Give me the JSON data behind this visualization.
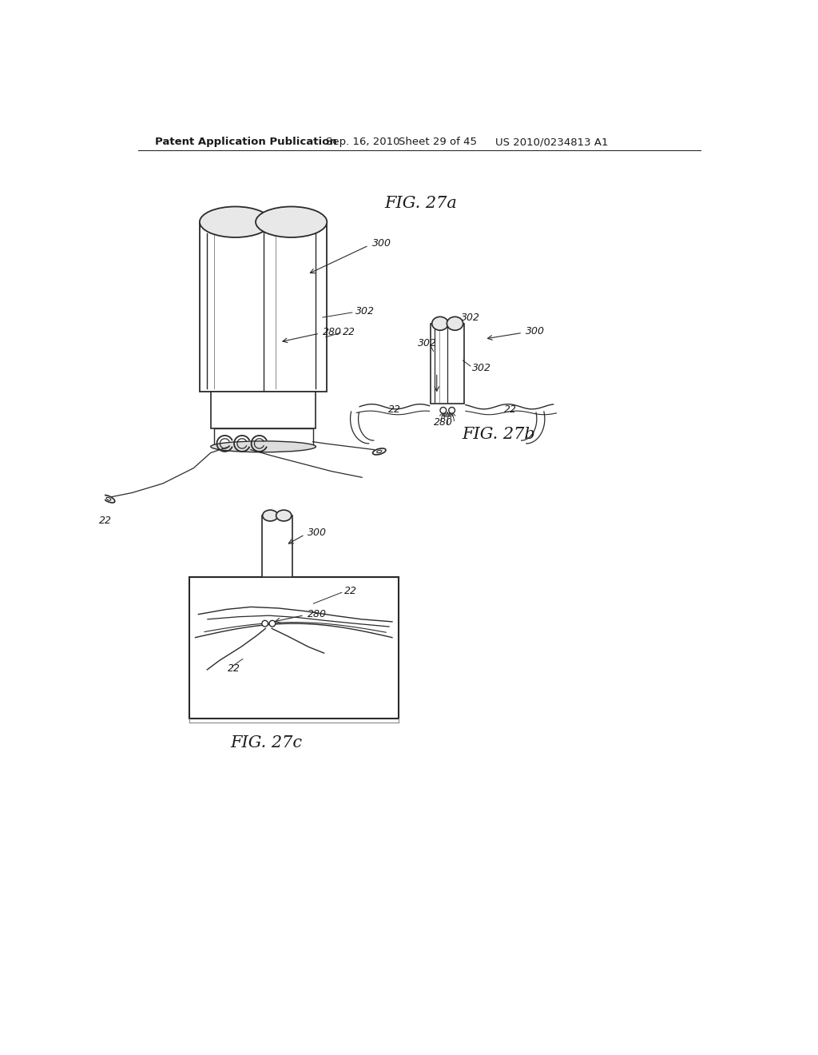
{
  "bg_color": "#ffffff",
  "header_text": "Patent Application Publication",
  "header_date": "Sep. 16, 2010",
  "header_sheet": "Sheet 29 of 45",
  "header_patent": "US 2010/0234813 A1",
  "fig27a_label": "FIG. 27a",
  "fig27b_label": "FIG. 27b",
  "fig27c_label": "FIG. 27c",
  "text_color": "#1a1a1a",
  "line_color": "#2a2a2a"
}
